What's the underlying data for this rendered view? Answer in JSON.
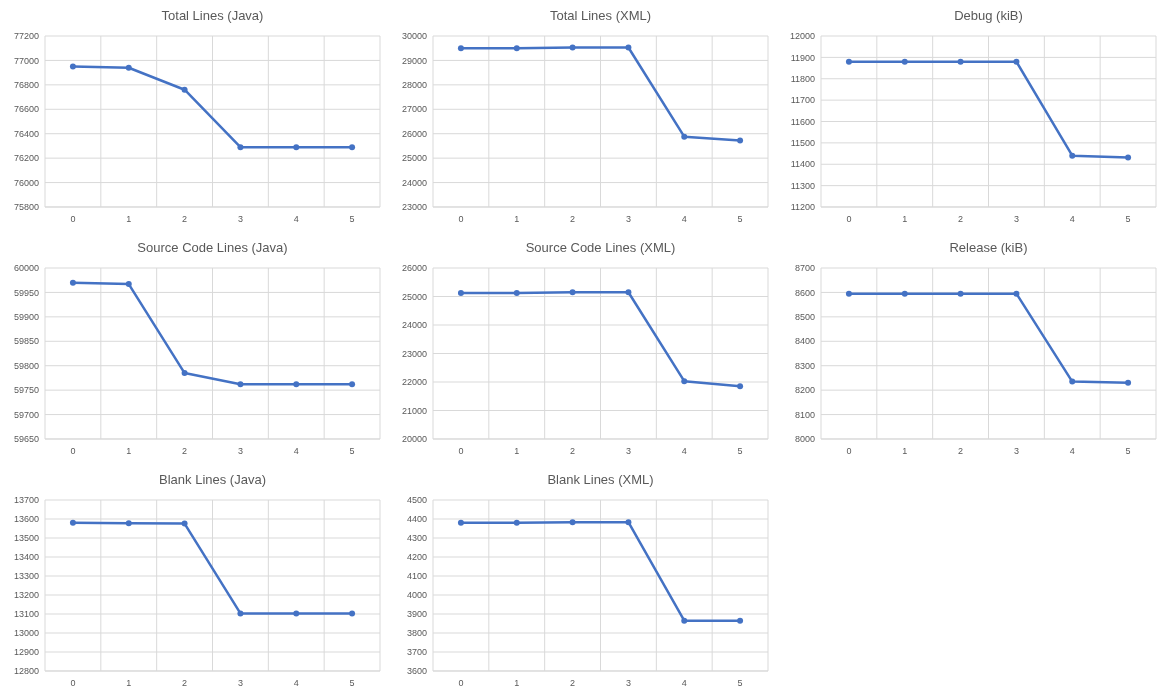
{
  "chart_data": [
    {
      "type": "line",
      "title": "Total Lines (Java)",
      "categories": [
        "0",
        "1",
        "2",
        "3",
        "4",
        "5"
      ],
      "series": [
        {
          "color": "#4472c4",
          "values": [
            76950,
            76940,
            76760,
            76290,
            76290,
            76290
          ]
        }
      ],
      "ylim": [
        75800,
        77200
      ],
      "yticks": [
        75800,
        76000,
        76200,
        76400,
        76600,
        76800,
        77000,
        77200
      ],
      "grid": true,
      "marker": "circle"
    },
    {
      "type": "line",
      "title": "Total Lines (XML)",
      "categories": [
        "0",
        "1",
        "2",
        "3",
        "4",
        "5"
      ],
      "series": [
        {
          "color": "#4472c4",
          "values": [
            29500,
            29500,
            29530,
            29530,
            25880,
            25720
          ]
        }
      ],
      "ylim": [
        23000,
        30000
      ],
      "yticks": [
        23000,
        24000,
        25000,
        26000,
        27000,
        28000,
        29000,
        30000
      ],
      "grid": true,
      "marker": "circle"
    },
    {
      "type": "line",
      "title": "Debug (kiB)",
      "categories": [
        "0",
        "1",
        "2",
        "3",
        "4",
        "5"
      ],
      "series": [
        {
          "color": "#4472c4",
          "values": [
            11880,
            11880,
            11880,
            11880,
            11440,
            11432
          ]
        }
      ],
      "ylim": [
        11200,
        12000
      ],
      "yticks": [
        11200,
        11300,
        11400,
        11500,
        11600,
        11700,
        11800,
        11900,
        12000
      ],
      "grid": true,
      "marker": "circle"
    },
    {
      "type": "line",
      "title": "Source Code Lines (Java)",
      "categories": [
        "0",
        "1",
        "2",
        "3",
        "4",
        "5"
      ],
      "series": [
        {
          "color": "#4472c4",
          "values": [
            59970,
            59967,
            59785,
            59762,
            59762,
            59762
          ]
        }
      ],
      "ylim": [
        59650,
        60000
      ],
      "yticks": [
        59650,
        59700,
        59750,
        59800,
        59850,
        59900,
        59950,
        60000
      ],
      "grid": true,
      "marker": "circle"
    },
    {
      "type": "line",
      "title": "Source Code Lines (XML)",
      "categories": [
        "0",
        "1",
        "2",
        "3",
        "4",
        "5"
      ],
      "series": [
        {
          "color": "#4472c4",
          "values": [
            25120,
            25120,
            25150,
            25150,
            22030,
            21850
          ]
        }
      ],
      "ylim": [
        20000,
        26000
      ],
      "yticks": [
        20000,
        21000,
        22000,
        23000,
        24000,
        25000,
        26000
      ],
      "grid": true,
      "marker": "circle"
    },
    {
      "type": "line",
      "title": "Release (kiB)",
      "categories": [
        "0",
        "1",
        "2",
        "3",
        "4",
        "5"
      ],
      "series": [
        {
          "color": "#4472c4",
          "values": [
            8595,
            8595,
            8595,
            8595,
            8235,
            8230
          ]
        }
      ],
      "ylim": [
        8000,
        8700
      ],
      "yticks": [
        8000,
        8100,
        8200,
        8300,
        8400,
        8500,
        8600,
        8700
      ],
      "grid": true,
      "marker": "circle"
    },
    {
      "type": "line",
      "title": "Blank Lines (Java)",
      "categories": [
        "0",
        "1",
        "2",
        "3",
        "4",
        "5"
      ],
      "series": [
        {
          "color": "#4472c4",
          "values": [
            13580,
            13578,
            13576,
            13103,
            13103,
            13103
          ]
        }
      ],
      "ylim": [
        12800,
        13700
      ],
      "yticks": [
        12800,
        12900,
        13000,
        13100,
        13200,
        13300,
        13400,
        13500,
        13600,
        13700
      ],
      "grid": true,
      "marker": "circle"
    },
    {
      "type": "line",
      "title": "Blank Lines (XML)",
      "categories": [
        "0",
        "1",
        "2",
        "3",
        "4",
        "5"
      ],
      "series": [
        {
          "color": "#4472c4",
          "values": [
            4380,
            4380,
            4383,
            4383,
            3865,
            3865
          ]
        }
      ],
      "ylim": [
        3600,
        4500
      ],
      "yticks": [
        3600,
        3700,
        3800,
        3900,
        4000,
        4100,
        4200,
        4300,
        4400,
        4500
      ],
      "grid": true,
      "marker": "circle"
    }
  ]
}
